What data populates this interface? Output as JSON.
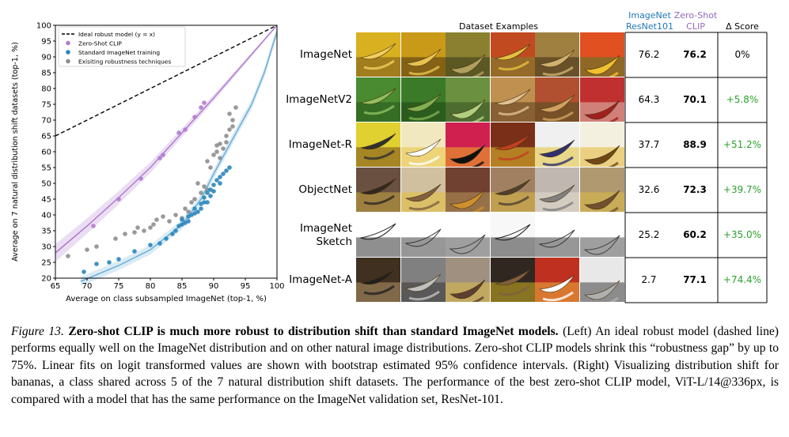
{
  "chart_data": {
    "type": "scatter",
    "xlabel": "Average on class subsampled ImageNet (top-1, %)",
    "ylabel": "Average on 7 natural distribution shift datasets (top-1, %)",
    "xlim": [
      65,
      100
    ],
    "ylim": [
      20,
      100
    ],
    "xticks": [
      "65",
      "70",
      "75",
      "80",
      "85",
      "90",
      "95",
      "100"
    ],
    "yticks": [
      "20",
      "25",
      "30",
      "35",
      "40",
      "45",
      "50",
      "55",
      "60",
      "65",
      "70",
      "75",
      "80",
      "85",
      "90",
      "95",
      "100"
    ],
    "grid": false,
    "legend_position": "top-left",
    "legend": [
      "Ideal robust model (y = x)",
      "Zero-Shot CLIP",
      "Standard ImageNet training",
      "Exisiting robustness techniques"
    ],
    "ideal_line": {
      "x": [
        65,
        100
      ],
      "y": [
        65,
        100
      ]
    },
    "clip_fit": {
      "x": [
        65,
        70,
        75,
        80,
        85,
        90,
        95,
        100
      ],
      "y": [
        28,
        36.5,
        45.5,
        55,
        66,
        77,
        88.5,
        100
      ]
    },
    "standard_fit": {
      "x": [
        69,
        75,
        80,
        85,
        88,
        90,
        93,
        96,
        98,
        100
      ],
      "y": [
        19,
        24,
        29,
        37,
        45,
        53,
        64,
        75,
        85,
        98
      ]
    },
    "series": [
      {
        "name": "Zero-Shot CLIP",
        "color": "#b07cd0",
        "points": [
          [
            71,
            36.5
          ],
          [
            75,
            45
          ],
          [
            78.5,
            51.5
          ],
          [
            81.5,
            58
          ],
          [
            82,
            59
          ],
          [
            84.5,
            66
          ],
          [
            85.5,
            67
          ],
          [
            87,
            71
          ],
          [
            88,
            74
          ],
          [
            88.5,
            75.5
          ]
        ]
      },
      {
        "name": "Standard ImageNet training",
        "color": "#2a86bd",
        "points": [
          [
            69.5,
            22
          ],
          [
            71.5,
            24.5
          ],
          [
            73.5,
            25
          ],
          [
            75,
            26
          ],
          [
            77.5,
            28.5
          ],
          [
            80,
            30.5
          ],
          [
            81.5,
            31
          ],
          [
            82.5,
            32.5
          ],
          [
            83.5,
            34
          ],
          [
            84,
            35
          ],
          [
            84.5,
            36.5
          ],
          [
            85,
            37
          ],
          [
            85,
            38.5
          ],
          [
            85.5,
            37.5
          ],
          [
            86,
            38
          ],
          [
            86,
            39.5
          ],
          [
            86.5,
            40
          ],
          [
            87,
            40.5
          ],
          [
            87,
            42
          ],
          [
            87.5,
            41
          ],
          [
            88,
            42
          ],
          [
            88,
            43.5
          ],
          [
            88.5,
            44
          ],
          [
            88.5,
            45.5
          ],
          [
            89,
            44
          ],
          [
            89,
            47
          ],
          [
            89.5,
            46
          ],
          [
            89.5,
            48
          ],
          [
            90,
            47.5
          ],
          [
            90,
            49.5
          ],
          [
            90.5,
            51
          ],
          [
            91,
            50
          ],
          [
            91,
            52
          ],
          [
            91.5,
            53
          ],
          [
            92,
            54
          ],
          [
            92.5,
            55
          ]
        ]
      },
      {
        "name": "Exisiting robustness techniques",
        "color": "#8e8e8e",
        "points": [
          [
            67,
            27
          ],
          [
            70,
            29
          ],
          [
            71.5,
            30
          ],
          [
            74.5,
            32.5
          ],
          [
            76,
            34
          ],
          [
            77.5,
            34.5
          ],
          [
            78,
            36
          ],
          [
            79,
            35
          ],
          [
            80,
            36
          ],
          [
            80.5,
            37
          ],
          [
            81,
            38.5
          ],
          [
            82,
            39.5
          ],
          [
            83,
            38
          ],
          [
            84,
            40
          ],
          [
            85,
            39
          ],
          [
            85.5,
            42
          ],
          [
            86,
            41
          ],
          [
            86.5,
            44
          ],
          [
            87,
            45
          ],
          [
            87.5,
            50
          ],
          [
            88,
            47
          ],
          [
            88.5,
            49
          ],
          [
            89,
            48
          ],
          [
            89,
            57
          ],
          [
            89.5,
            55
          ],
          [
            90,
            59
          ],
          [
            90.5,
            62
          ],
          [
            90.5,
            60
          ],
          [
            91,
            58
          ],
          [
            91.5,
            61
          ],
          [
            92,
            65
          ],
          [
            92,
            63
          ],
          [
            92.5,
            67
          ],
          [
            93,
            68
          ],
          [
            93,
            70
          ],
          [
            92.5,
            72
          ],
          [
            93.5,
            74
          ],
          [
            91,
            62.5
          ]
        ]
      }
    ]
  },
  "table": {
    "dataset_examples_title": "Dataset Examples",
    "col_resnet": "ImageNet\nResNet101",
    "col_clip": "Zero-Shot\nCLIP",
    "col_delta": "Δ Score",
    "colors": {
      "resnet_head": "#1f77b4",
      "clip_head": "#9467bd",
      "delta": "#2ca02c"
    },
    "rows": [
      {
        "label": "ImageNet",
        "resnet": "76.2",
        "clip": "76.2",
        "delta": "0%"
      },
      {
        "label": "ImageNetV2",
        "resnet": "64.3",
        "clip": "70.1",
        "delta": "+5.8%"
      },
      {
        "label": "ImageNet-R",
        "resnet": "37.7",
        "clip": "88.9",
        "delta": "+51.2%"
      },
      {
        "label": "ObjectNet",
        "resnet": "32.6",
        "clip": "72.3",
        "delta": "+39.7%"
      },
      {
        "label": "ImageNet\nSketch",
        "resnet": "25.2",
        "clip": "60.2",
        "delta": "+35.0%"
      },
      {
        "label": "ImageNet-A",
        "resnet": "2.7",
        "clip": "77.1",
        "delta": "+74.4%"
      }
    ]
  },
  "caption": {
    "fig_label": "Figure 13.",
    "title": "Zero-shot CLIP is much more robust to distribution shift than standard ImageNet models.",
    "body": "(Left) An ideal robust model (dashed line) performs equally well on the ImageNet distribution and on other natural image distributions. Zero-shot CLIP models shrink this “robustness gap” by up to 75%. Linear fits on logit transformed values are shown with bootstrap estimated 95% confidence intervals. (Right) Visualizing distribution shift for bananas, a class shared across 5 of the 7 natural distribution shift datasets. The performance of the best zero-shot CLIP model, ViT-L/14@336px, is compared with a model that has the same performance on the ImageNet validation set, ResNet-101."
  }
}
